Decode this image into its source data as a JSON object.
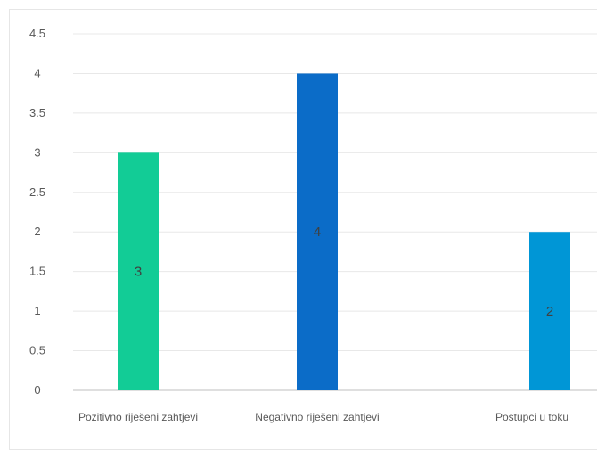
{
  "chart_data": {
    "type": "bar",
    "categories": [
      "Pozitivno riješeni zahtjevi",
      "Negativno riješeni zahtjevi",
      "Postupci u toku"
    ],
    "values": [
      3,
      4,
      2
    ],
    "colors": [
      "#12cc96",
      "#0b6cc8",
      "#0096d6"
    ],
    "ylim": [
      0,
      4.5
    ],
    "yticks": [
      "0",
      "0.5",
      "1",
      "1.5",
      "2",
      "2.5",
      "3",
      "3.5",
      "4",
      "4.5"
    ],
    "data_labels": [
      "3",
      "4",
      "2"
    ],
    "grid": true,
    "legend": "none",
    "title": "",
    "xlabel": "",
    "ylabel": ""
  }
}
